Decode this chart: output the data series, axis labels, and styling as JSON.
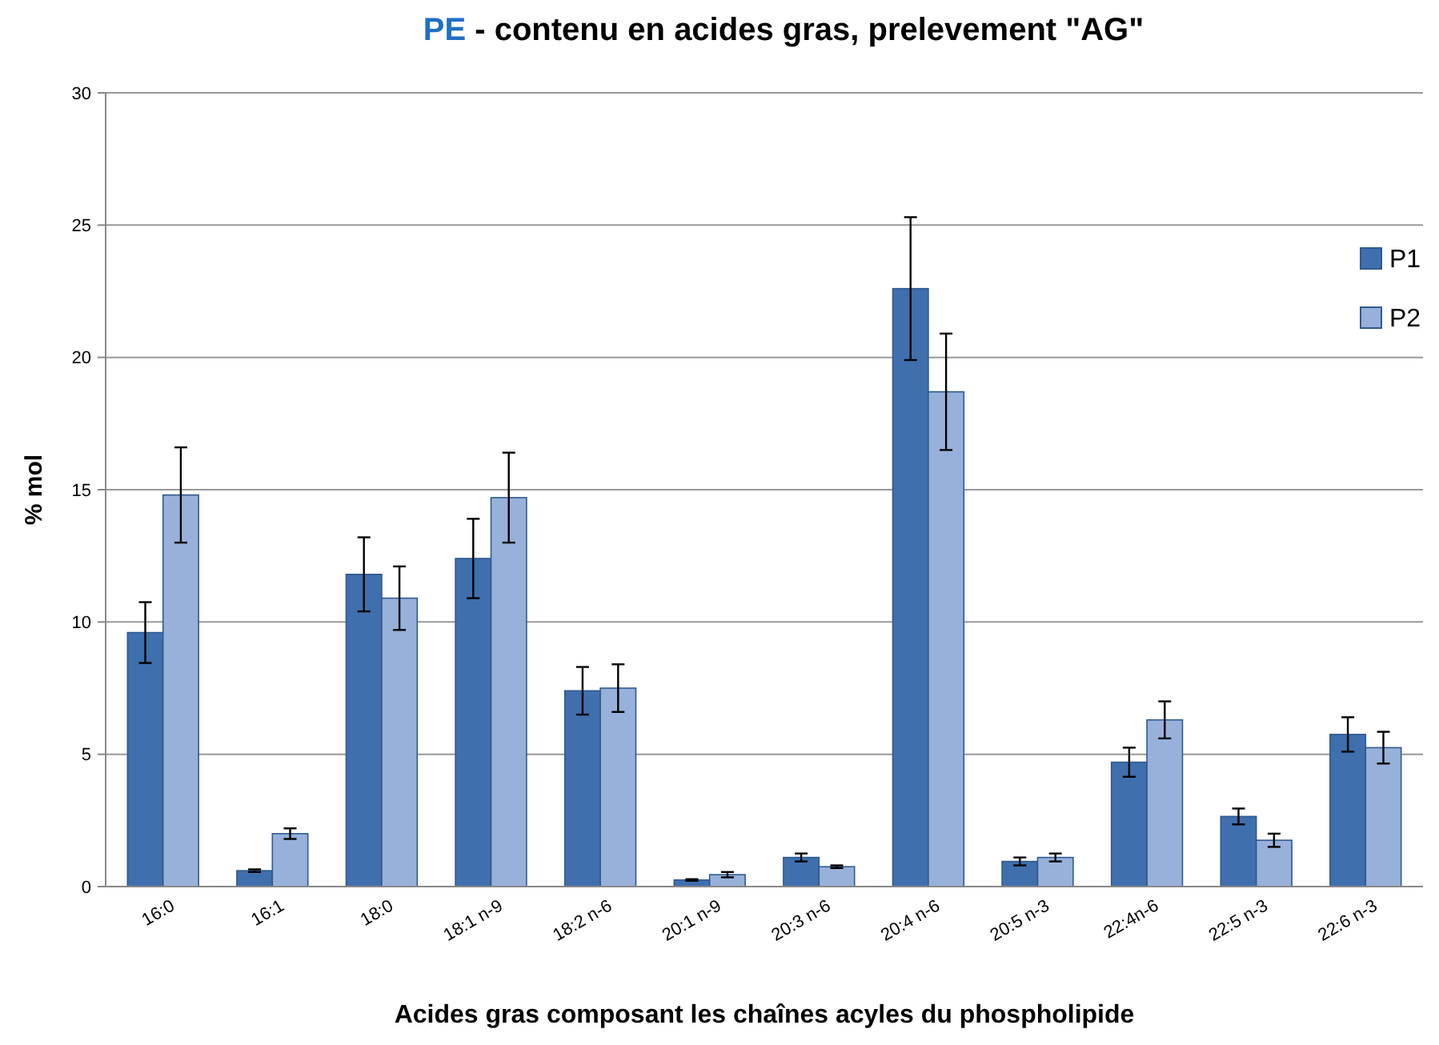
{
  "chart_data": {
    "type": "bar",
    "title": "PE - contenu en acides gras, prelevement \"AG\"",
    "xlabel": "Acides gras composant  les chaînes acyles du phospholipide",
    "ylabel": "% mol",
    "categories": [
      "16:0",
      "16:1",
      "18:0",
      "18:1 n-9",
      "18:2 n-6",
      "20:1 n-9",
      "20:3 n-6",
      "20:4 n-6",
      "20:5 n-3",
      "22:4n-6",
      "22:5 n-3",
      "22:6 n-3"
    ],
    "series": [
      {
        "name": "P1",
        "color": "#3f6fad",
        "values": [
          9.6,
          0.6,
          11.8,
          12.4,
          7.4,
          0.25,
          1.1,
          22.6,
          0.95,
          4.7,
          2.65,
          5.75
        ],
        "errors": [
          1.15,
          0.05,
          1.4,
          1.5,
          0.9,
          0.03,
          0.15,
          2.7,
          0.15,
          0.55,
          0.3,
          0.65
        ]
      },
      {
        "name": "P2",
        "color": "#97b1da",
        "values": [
          14.8,
          2.0,
          10.9,
          14.7,
          7.5,
          0.45,
          0.75,
          18.7,
          1.1,
          6.3,
          1.75,
          5.25
        ],
        "errors": [
          1.8,
          0.2,
          1.2,
          1.7,
          0.9,
          0.1,
          0.05,
          2.2,
          0.15,
          0.7,
          0.25,
          0.6
        ]
      }
    ],
    "ylim": [
      0,
      30
    ],
    "yticks": [
      0,
      5,
      10,
      15,
      20,
      25,
      30
    ],
    "grid": "y",
    "legend": "top right"
  }
}
